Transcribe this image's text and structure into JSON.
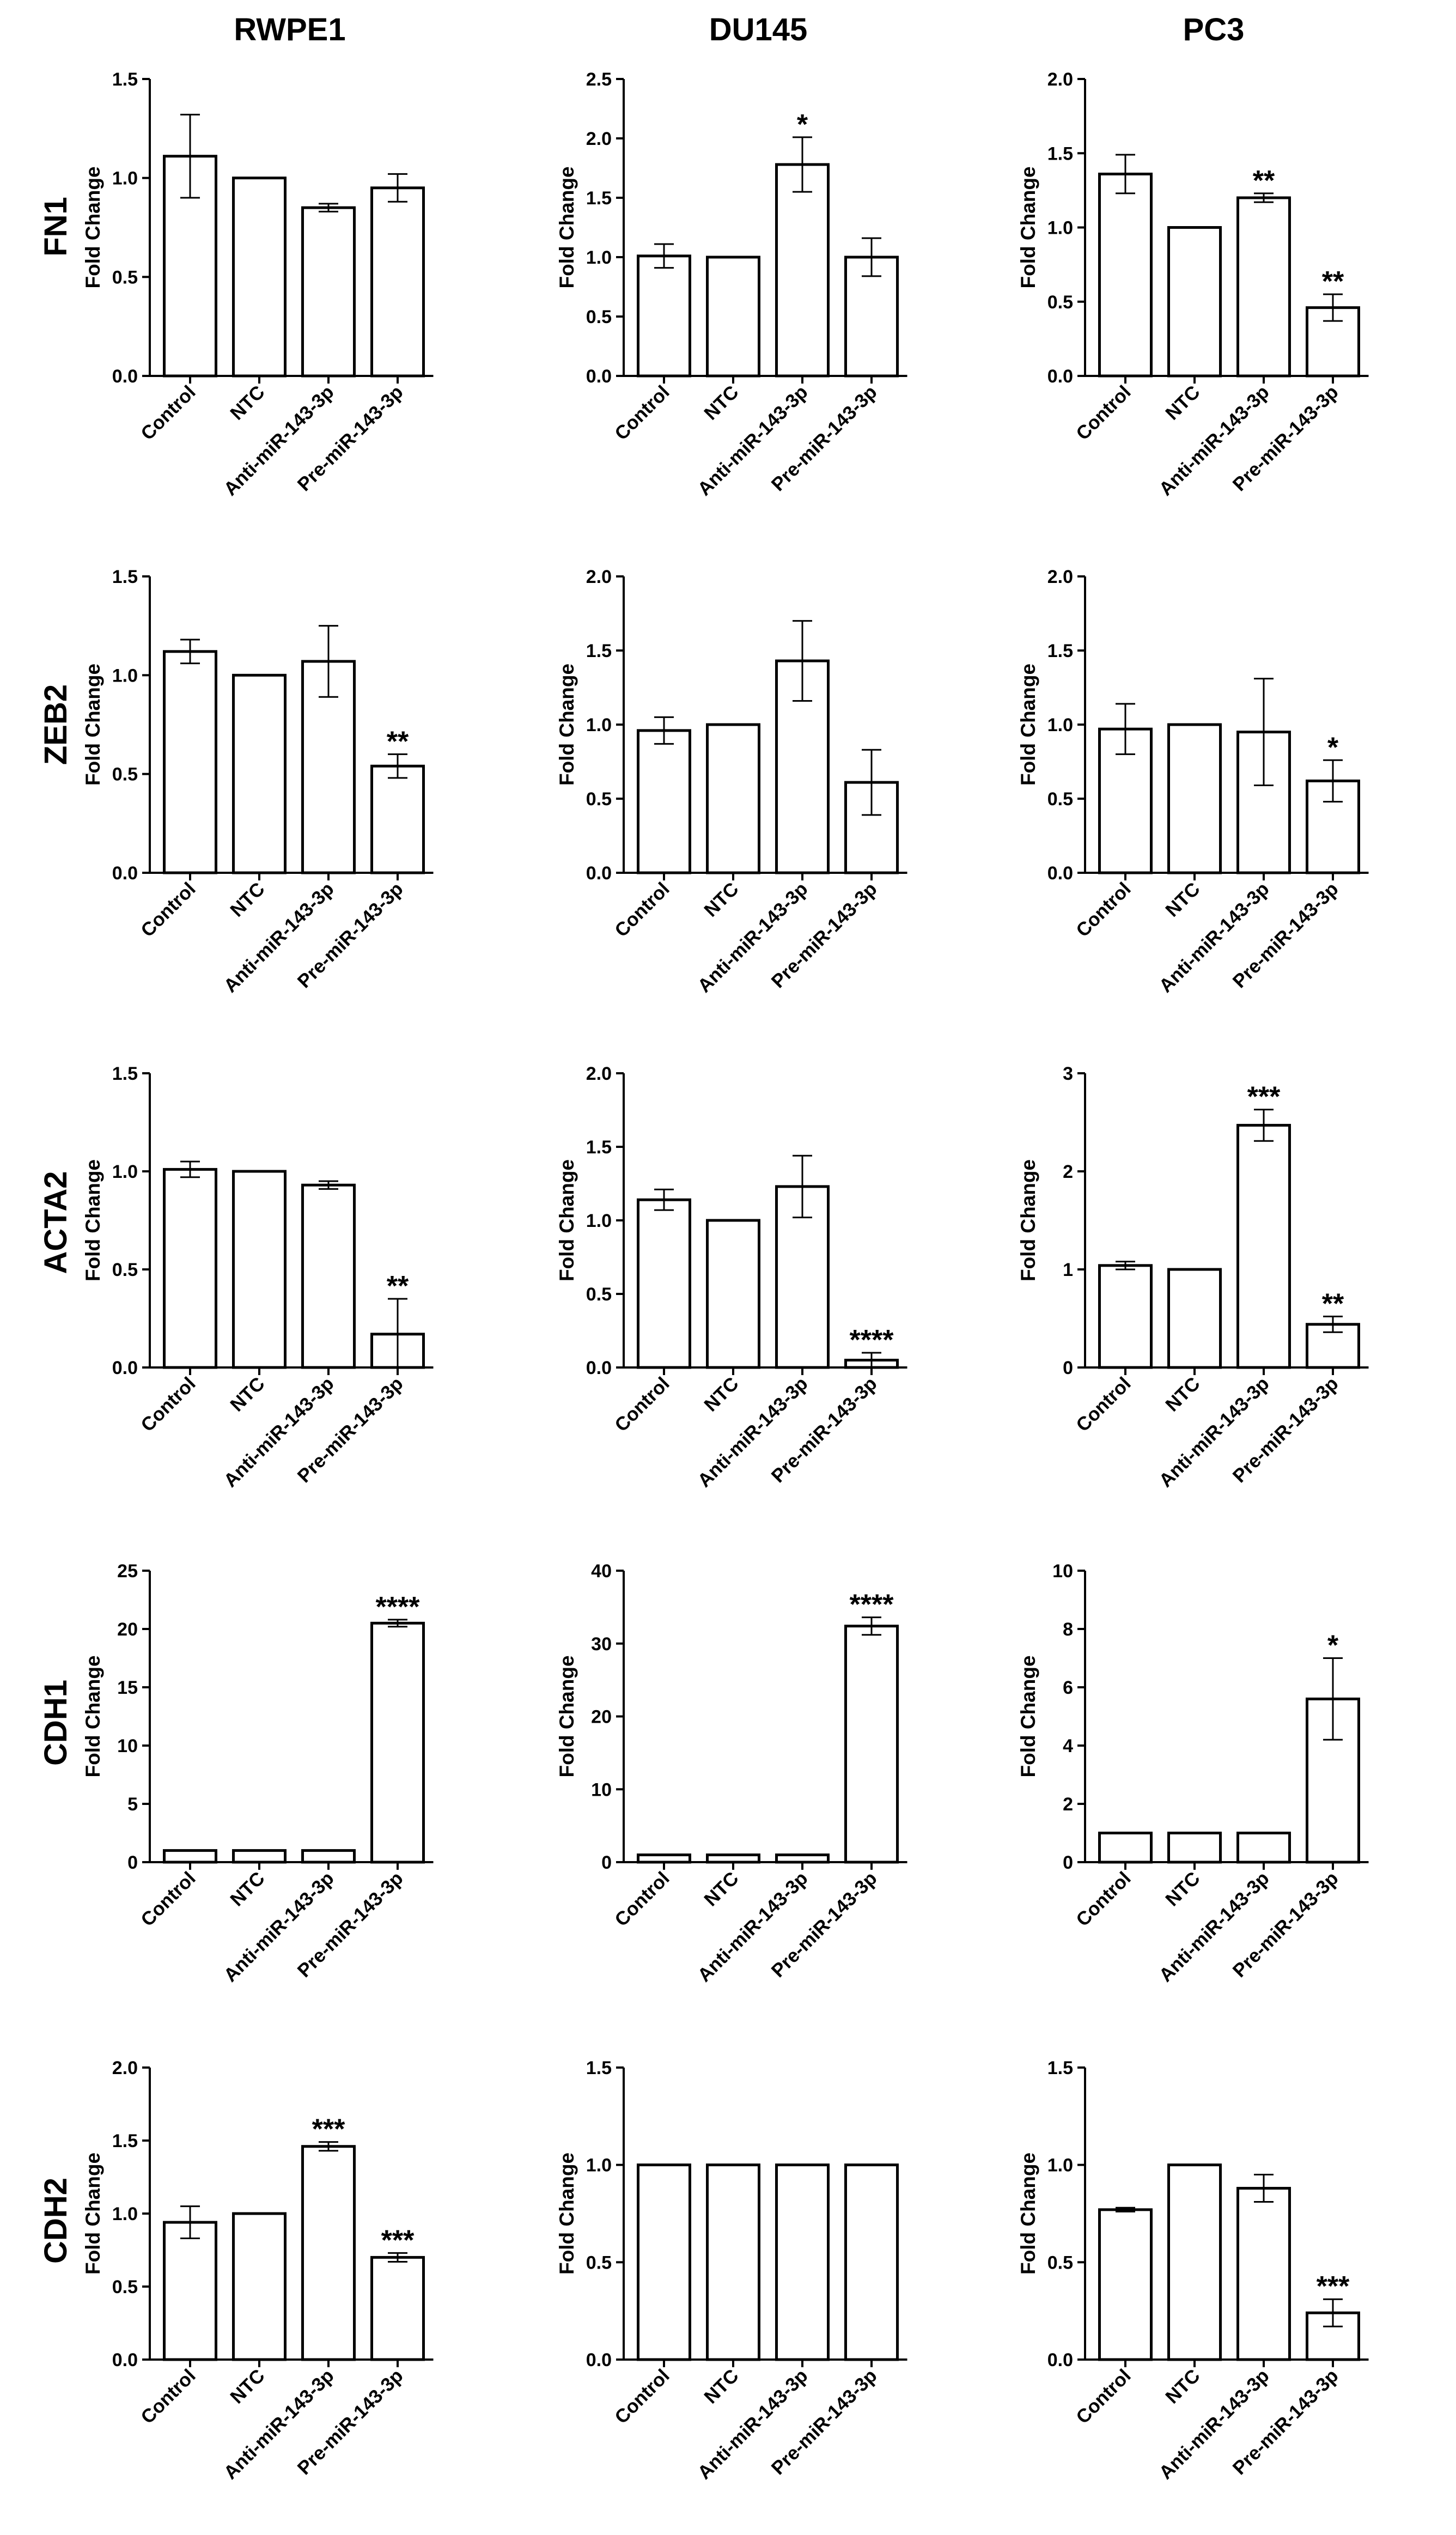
{
  "figure": {
    "columns": [
      "RWPE1",
      "DU145",
      "PC3"
    ],
    "rows": [
      "FN1",
      "ZEB2",
      "ACTA2",
      "CDH1",
      "CDH2"
    ]
  },
  "chart_data": [
    {
      "type": "bar",
      "cell_line": "RWPE1",
      "gene": "FN1",
      "ylabel": "Fold Change",
      "ylim": [
        0,
        1.5
      ],
      "yticks": [
        0.0,
        0.5,
        1.0,
        1.5
      ],
      "tick_labels": [
        "0.0",
        "0.5",
        "1.0",
        "1.5"
      ],
      "categories": [
        "Control",
        "NTC",
        "Anti-miR-143-3p",
        "Pre-miR-143-3p"
      ],
      "values": [
        1.11,
        1.0,
        0.85,
        0.95
      ],
      "errors": [
        0.21,
        0,
        0.02,
        0.07
      ],
      "significance": [
        "",
        "",
        "",
        ""
      ]
    },
    {
      "type": "bar",
      "cell_line": "DU145",
      "gene": "FN1",
      "ylabel": "Fold Change",
      "ylim": [
        0,
        2.5
      ],
      "yticks": [
        0.0,
        0.5,
        1.0,
        1.5,
        2.0,
        2.5
      ],
      "tick_labels": [
        "0.0",
        "0.5",
        "1.0",
        "1.5",
        "2.0",
        "2.5"
      ],
      "categories": [
        "Control",
        "NTC",
        "Anti-miR-143-3p",
        "Pre-miR-143-3p"
      ],
      "values": [
        1.01,
        1.0,
        1.78,
        1.0
      ],
      "errors": [
        0.1,
        0,
        0.23,
        0.16
      ],
      "significance": [
        "",
        "",
        "*",
        ""
      ]
    },
    {
      "type": "bar",
      "cell_line": "PC3",
      "gene": "FN1",
      "ylabel": "Fold Change",
      "ylim": [
        0,
        2.0
      ],
      "yticks": [
        0.0,
        0.5,
        1.0,
        1.5,
        2.0
      ],
      "tick_labels": [
        "0.0",
        "0.5",
        "1.0",
        "1.5",
        "2.0"
      ],
      "categories": [
        "Control",
        "NTC",
        "Anti-miR-143-3p",
        "Pre-miR-143-3p"
      ],
      "values": [
        1.36,
        1.0,
        1.2,
        0.46
      ],
      "errors": [
        0.13,
        0,
        0.03,
        0.09
      ],
      "significance": [
        "",
        "",
        "**",
        "**"
      ]
    },
    {
      "type": "bar",
      "cell_line": "RWPE1",
      "gene": "ZEB2",
      "ylabel": "Fold Change",
      "ylim": [
        0,
        1.5
      ],
      "yticks": [
        0.0,
        0.5,
        1.0,
        1.5
      ],
      "tick_labels": [
        "0.0",
        "0.5",
        "1.0",
        "1.5"
      ],
      "categories": [
        "Control",
        "NTC",
        "Anti-miR-143-3p",
        "Pre-miR-143-3p"
      ],
      "values": [
        1.12,
        1.0,
        1.07,
        0.54
      ],
      "errors": [
        0.06,
        0,
        0.18,
        0.06
      ],
      "significance": [
        "",
        "",
        "",
        "**"
      ]
    },
    {
      "type": "bar",
      "cell_line": "DU145",
      "gene": "ZEB2",
      "ylabel": "Fold Change",
      "ylim": [
        0,
        2.0
      ],
      "yticks": [
        0.0,
        0.5,
        1.0,
        1.5,
        2.0
      ],
      "tick_labels": [
        "0.0",
        "0.5",
        "1.0",
        "1.5",
        "2.0"
      ],
      "categories": [
        "Control",
        "NTC",
        "Anti-miR-143-3p",
        "Pre-miR-143-3p"
      ],
      "values": [
        0.96,
        1.0,
        1.43,
        0.61
      ],
      "errors": [
        0.09,
        0,
        0.27,
        0.22
      ],
      "significance": [
        "",
        "",
        "",
        ""
      ]
    },
    {
      "type": "bar",
      "cell_line": "PC3",
      "gene": "ZEB2",
      "ylabel": "Fold Change",
      "ylim": [
        0,
        2.0
      ],
      "yticks": [
        0.0,
        0.5,
        1.0,
        1.5,
        2.0
      ],
      "tick_labels": [
        "0.0",
        "0.5",
        "1.0",
        "1.5",
        "2.0"
      ],
      "categories": [
        "Control",
        "NTC",
        "Anti-miR-143-3p",
        "Pre-miR-143-3p"
      ],
      "values": [
        0.97,
        1.0,
        0.95,
        0.62
      ],
      "errors": [
        0.17,
        0,
        0.36,
        0.14
      ],
      "significance": [
        "",
        "",
        "",
        "*"
      ]
    },
    {
      "type": "bar",
      "cell_line": "RWPE1",
      "gene": "ACTA2",
      "ylabel": "Fold Change",
      "ylim": [
        0,
        1.5
      ],
      "yticks": [
        0.0,
        0.5,
        1.0,
        1.5
      ],
      "tick_labels": [
        "0.0",
        "0.5",
        "1.0",
        "1.5"
      ],
      "categories": [
        "Control",
        "NTC",
        "Anti-miR-143-3p",
        "Pre-miR-143-3p"
      ],
      "values": [
        1.01,
        1.0,
        0.93,
        0.17
      ],
      "errors": [
        0.04,
        0,
        0.02,
        0.18
      ],
      "significance": [
        "",
        "",
        "",
        "**"
      ]
    },
    {
      "type": "bar",
      "cell_line": "DU145",
      "gene": "ACTA2",
      "ylabel": "Fold Change",
      "ylim": [
        0,
        2.0
      ],
      "yticks": [
        0.0,
        0.5,
        1.0,
        1.5,
        2.0
      ],
      "tick_labels": [
        "0.0",
        "0.5",
        "1.0",
        "1.5",
        "2.0"
      ],
      "categories": [
        "Control",
        "NTC",
        "Anti-miR-143-3p",
        "Pre-miR-143-3p"
      ],
      "values": [
        1.14,
        1.0,
        1.23,
        0.05
      ],
      "errors": [
        0.07,
        0,
        0.21,
        0.05
      ],
      "significance": [
        "",
        "",
        "",
        "****"
      ]
    },
    {
      "type": "bar",
      "cell_line": "PC3",
      "gene": "ACTA2",
      "ylabel": "Fold Change",
      "ylim": [
        0,
        3
      ],
      "yticks": [
        0,
        1,
        2,
        3
      ],
      "tick_labels": [
        "0",
        "1",
        "2",
        "3"
      ],
      "categories": [
        "Control",
        "NTC",
        "Anti-miR-143-3p",
        "Pre-miR-143-3p"
      ],
      "values": [
        1.04,
        1.0,
        2.47,
        0.44
      ],
      "errors": [
        0.04,
        0,
        0.16,
        0.08
      ],
      "significance": [
        "",
        "",
        "***",
        "**"
      ]
    },
    {
      "type": "bar",
      "cell_line": "RWPE1",
      "gene": "CDH1",
      "ylabel": "Fold Change",
      "ylim": [
        0,
        25
      ],
      "yticks": [
        0,
        5,
        10,
        15,
        20,
        25
      ],
      "tick_labels": [
        "0",
        "5",
        "10",
        "15",
        "20",
        "25"
      ],
      "categories": [
        "Control",
        "NTC",
        "Anti-miR-143-3p",
        "Pre-miR-143-3p"
      ],
      "values": [
        1.0,
        1.0,
        1.0,
        20.5
      ],
      "errors": [
        0,
        0,
        0,
        0.3
      ],
      "significance": [
        "",
        "",
        "",
        "****"
      ]
    },
    {
      "type": "bar",
      "cell_line": "DU145",
      "gene": "CDH1",
      "ylabel": "Fold Change",
      "ylim": [
        0,
        40
      ],
      "yticks": [
        0,
        10,
        20,
        30,
        40
      ],
      "tick_labels": [
        "0",
        "10",
        "20",
        "30",
        "40"
      ],
      "categories": [
        "Control",
        "NTC",
        "Anti-miR-143-3p",
        "Pre-miR-143-3p"
      ],
      "values": [
        1.0,
        1.0,
        1.0,
        32.4
      ],
      "errors": [
        0,
        0,
        0,
        1.2
      ],
      "significance": [
        "",
        "",
        "",
        "****"
      ]
    },
    {
      "type": "bar",
      "cell_line": "PC3",
      "gene": "CDH1",
      "ylabel": "Fold Change",
      "ylim": [
        0,
        10
      ],
      "yticks": [
        0,
        2,
        4,
        6,
        8,
        10
      ],
      "tick_labels": [
        "0",
        "2",
        "4",
        "6",
        "8",
        "10"
      ],
      "categories": [
        "Control",
        "NTC",
        "Anti-miR-143-3p",
        "Pre-miR-143-3p"
      ],
      "values": [
        1.0,
        1.0,
        1.0,
        5.6
      ],
      "errors": [
        0,
        0,
        0,
        1.4
      ],
      "significance": [
        "",
        "",
        "",
        "*"
      ]
    },
    {
      "type": "bar",
      "cell_line": "RWPE1",
      "gene": "CDH2",
      "ylabel": "Fold Change",
      "ylim": [
        0,
        2.0
      ],
      "yticks": [
        0.0,
        0.5,
        1.0,
        1.5,
        2.0
      ],
      "tick_labels": [
        "0.0",
        "0.5",
        "1.0",
        "1.5",
        "2.0"
      ],
      "categories": [
        "Control",
        "NTC",
        "Anti-miR-143-3p",
        "Pre-miR-143-3p"
      ],
      "values": [
        0.94,
        1.0,
        1.46,
        0.7
      ],
      "errors": [
        0.11,
        0,
        0.03,
        0.03
      ],
      "significance": [
        "",
        "",
        "***",
        "***"
      ]
    },
    {
      "type": "bar",
      "cell_line": "DU145",
      "gene": "CDH2",
      "ylabel": "Fold Change",
      "ylim": [
        0,
        1.5
      ],
      "yticks": [
        0.0,
        0.5,
        1.0,
        1.5
      ],
      "tick_labels": [
        "0.0",
        "0.5",
        "1.0",
        "1.5"
      ],
      "categories": [
        "Control",
        "NTC",
        "Anti-miR-143-3p",
        "Pre-miR-143-3p"
      ],
      "values": [
        1.0,
        1.0,
        1.0,
        1.0
      ],
      "errors": [
        0,
        0,
        0,
        0
      ],
      "significance": [
        "",
        "",
        "",
        ""
      ]
    },
    {
      "type": "bar",
      "cell_line": "PC3",
      "gene": "CDH2",
      "ylabel": "Fold Change",
      "ylim": [
        0,
        1.5
      ],
      "yticks": [
        0.0,
        0.5,
        1.0,
        1.5
      ],
      "tick_labels": [
        "0.0",
        "0.5",
        "1.0",
        "1.5"
      ],
      "categories": [
        "Control",
        "NTC",
        "Anti-miR-143-3p",
        "Pre-miR-143-3p"
      ],
      "values": [
        0.77,
        1.0,
        0.88,
        0.24
      ],
      "errors": [
        0.01,
        0,
        0.07,
        0.07
      ],
      "significance": [
        "",
        "",
        "",
        "***"
      ]
    }
  ]
}
